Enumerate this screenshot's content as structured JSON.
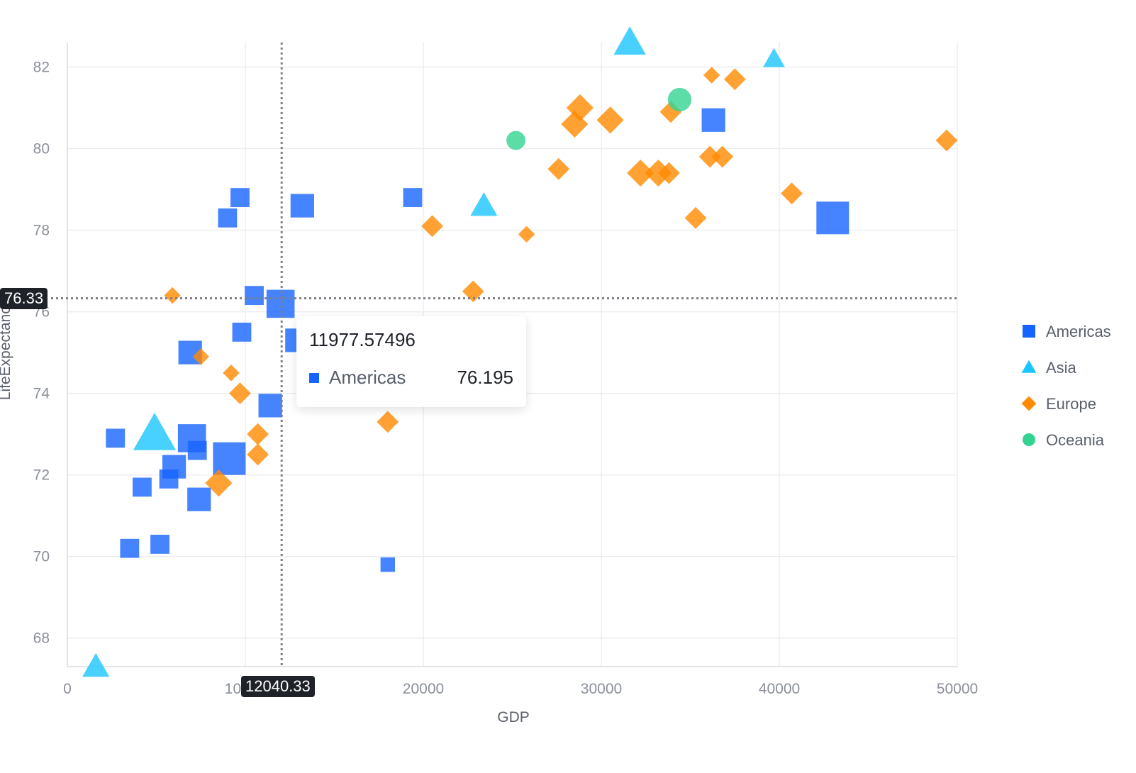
{
  "chart_data": {
    "type": "scatter",
    "xlabel": "GDP",
    "ylabel": "LifeExpectancy",
    "xlim": [
      0,
      50000
    ],
    "ylim": [
      67.3,
      82.6
    ],
    "x_ticks": [
      0,
      10000,
      20000,
      30000,
      40000,
      50000
    ],
    "y_ticks": [
      68,
      70,
      72,
      74,
      76,
      78,
      80,
      82
    ],
    "grid": true,
    "legend_position": "right",
    "series": [
      {
        "name": "Americas",
        "shape": "square",
        "color": "#1664ff",
        "points": [
          {
            "x": 9700,
            "y": 78.8,
            "size": 2
          },
          {
            "x": 9000,
            "y": 78.3,
            "size": 2
          },
          {
            "x": 13200,
            "y": 78.6,
            "size": 3
          },
          {
            "x": 19400,
            "y": 78.8,
            "size": 2
          },
          {
            "x": 10500,
            "y": 76.4,
            "size": 2
          },
          {
            "x": 11977.57496,
            "y": 76.195,
            "size": 4
          },
          {
            "x": 9800,
            "y": 75.5,
            "size": 2
          },
          {
            "x": 12900,
            "y": 75.3,
            "size": 3
          },
          {
            "x": 6900,
            "y": 75.0,
            "size": 3
          },
          {
            "x": 11400,
            "y": 73.7,
            "size": 3
          },
          {
            "x": 2700,
            "y": 72.9,
            "size": 2
          },
          {
            "x": 7000,
            "y": 72.9,
            "size": 4
          },
          {
            "x": 7300,
            "y": 72.6,
            "size": 2
          },
          {
            "x": 9100,
            "y": 72.4,
            "size": 5
          },
          {
            "x": 6000,
            "y": 72.2,
            "size": 3
          },
          {
            "x": 4200,
            "y": 71.7,
            "size": 2
          },
          {
            "x": 5700,
            "y": 71.9,
            "size": 2
          },
          {
            "x": 7400,
            "y": 71.4,
            "size": 3
          },
          {
            "x": 3500,
            "y": 70.2,
            "size": 2
          },
          {
            "x": 5200,
            "y": 70.3,
            "size": 2
          },
          {
            "x": 18000,
            "y": 69.8,
            "size": 1
          },
          {
            "x": 36300,
            "y": 80.7,
            "size": 3
          },
          {
            "x": 43000,
            "y": 78.3,
            "size": 5
          }
        ]
      },
      {
        "name": "Asia",
        "shape": "triangle",
        "color": "#1ac6ff",
        "points": [
          {
            "x": 31600,
            "y": 82.6,
            "size": 4
          },
          {
            "x": 39700,
            "y": 82.2,
            "size": 2
          },
          {
            "x": 23400,
            "y": 78.6,
            "size": 3
          },
          {
            "x": 4900,
            "y": 73.0,
            "size": 6
          },
          {
            "x": 1600,
            "y": 67.3,
            "size": 3
          }
        ]
      },
      {
        "name": "Europe",
        "shape": "diamond",
        "color": "#ff8a00",
        "points": [
          {
            "x": 36200,
            "y": 81.8,
            "size": 1
          },
          {
            "x": 37500,
            "y": 81.7,
            "size": 2
          },
          {
            "x": 28800,
            "y": 81.0,
            "size": 3
          },
          {
            "x": 33900,
            "y": 80.9,
            "size": 2
          },
          {
            "x": 30500,
            "y": 80.7,
            "size": 3
          },
          {
            "x": 28500,
            "y": 80.6,
            "size": 3
          },
          {
            "x": 49400,
            "y": 80.2,
            "size": 2
          },
          {
            "x": 36100,
            "y": 79.8,
            "size": 2
          },
          {
            "x": 36800,
            "y": 79.8,
            "size": 2
          },
          {
            "x": 27600,
            "y": 79.5,
            "size": 2
          },
          {
            "x": 32200,
            "y": 79.4,
            "size": 3
          },
          {
            "x": 33200,
            "y": 79.4,
            "size": 3
          },
          {
            "x": 33800,
            "y": 79.4,
            "size": 2
          },
          {
            "x": 40700,
            "y": 78.9,
            "size": 2
          },
          {
            "x": 35300,
            "y": 78.3,
            "size": 2
          },
          {
            "x": 20500,
            "y": 78.1,
            "size": 2
          },
          {
            "x": 25800,
            "y": 77.9,
            "size": 1
          },
          {
            "x": 22800,
            "y": 76.5,
            "size": 2
          },
          {
            "x": 5900,
            "y": 76.4,
            "size": 1
          },
          {
            "x": 7500,
            "y": 74.9,
            "size": 1
          },
          {
            "x": 9200,
            "y": 74.5,
            "size": 1
          },
          {
            "x": 9700,
            "y": 74.0,
            "size": 2
          },
          {
            "x": 18000,
            "y": 73.3,
            "size": 2
          },
          {
            "x": 10700,
            "y": 73.0,
            "size": 2
          },
          {
            "x": 10700,
            "y": 72.5,
            "size": 2
          },
          {
            "x": 8500,
            "y": 71.8,
            "size": 3
          }
        ]
      },
      {
        "name": "Oceania",
        "shape": "circle",
        "color": "#33d391",
        "points": [
          {
            "x": 34400,
            "y": 81.2,
            "size": 3
          },
          {
            "x": 25200,
            "y": 80.2,
            "size": 2
          }
        ]
      }
    ],
    "crosshair": {
      "x_label": "12040.33",
      "y_label": "76.33",
      "x": 12040.33,
      "y": 76.33
    },
    "tooltip": {
      "title": "11977.57496",
      "series": "Americas",
      "value": "76.195"
    }
  }
}
